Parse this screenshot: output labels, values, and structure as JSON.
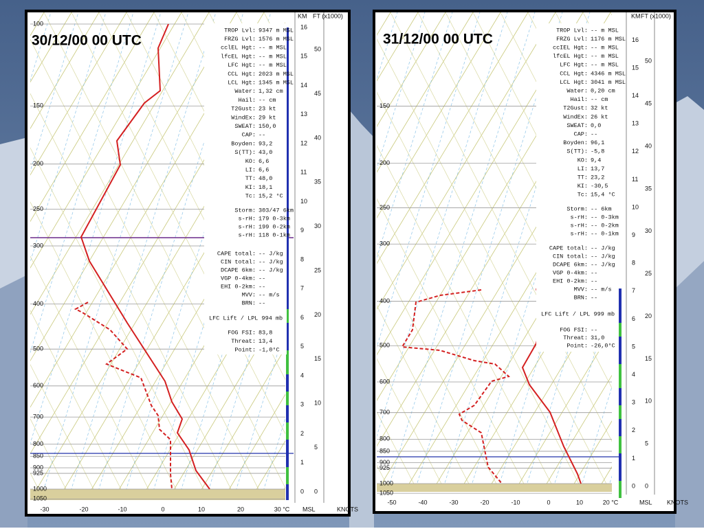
{
  "panels": [
    {
      "title": "30/12/00 00 UTC",
      "header": [
        "KM",
        "FT (x1000)"
      ],
      "footer": [
        "MSL",
        "KNOTS"
      ],
      "pressure_labels": [
        "100",
        "150",
        "200",
        "250",
        "300",
        "400",
        "500",
        "600",
        "700",
        "800",
        "850",
        "900",
        "925",
        "1000",
        "1050"
      ],
      "temp_labels": [
        "-30",
        "-20",
        "-10",
        "0",
        "10",
        "20",
        "30 °C"
      ],
      "km_labels": [
        "16",
        "15",
        "14",
        "13",
        "12",
        "11",
        "10",
        "9",
        "8",
        "7",
        "6",
        "5",
        "4",
        "3",
        "2",
        "1",
        "0"
      ],
      "ft_labels": [
        "50",
        "45",
        "40",
        "35",
        "30",
        "25",
        "20",
        "15",
        "10",
        "5",
        "0"
      ],
      "params": [
        [
          "TROP Lvl:",
          "9347 m MSL"
        ],
        [
          "FRZG Lvl:",
          "1576 m MSL"
        ],
        [
          "cclEL Hgt:",
          "-- m MSL"
        ],
        [
          "lfcEL Hgt:",
          "-- m MSL"
        ],
        [
          "LFC Hgt:",
          "-- m MSL"
        ],
        [
          "CCL Hgt:",
          "2023 m MSL"
        ],
        [
          "LCL Hgt:",
          "1345 m MSL"
        ],
        [
          "Water:",
          "1,32 cm"
        ],
        [
          "Hail:",
          "-- cm"
        ],
        [
          "T2Gust:",
          "23 kt"
        ],
        [
          "WindEx:",
          "29 kt"
        ],
        [
          "SWEAT:",
          "150,0"
        ],
        [
          "CAP:",
          "--"
        ],
        [
          "Boyden:",
          "93,2"
        ],
        [
          "S(TT):",
          "43,0"
        ],
        [
          "KO:",
          "6,6"
        ],
        [
          "LI:",
          "6,6"
        ],
        [
          "TT:",
          "48,0"
        ],
        [
          "KI:",
          "18,1"
        ],
        [
          "Tc:",
          "15,2 °C"
        ]
      ],
      "storm": [
        [
          "Storm:",
          "303/47  6km"
        ],
        [
          "s-rH:",
          "179  0-3km"
        ],
        [
          "s-rH:",
          "199  0-2km"
        ],
        [
          "s-rH:",
          "118  0-1km"
        ]
      ],
      "cape": [
        [
          "CAPE total:",
          "-- J/kg"
        ],
        [
          "CIN total:",
          "-- J/kg"
        ],
        [
          "DCAPE 6km:",
          "-- J/kg"
        ],
        [
          "VGP 0-4km:",
          "--"
        ],
        [
          "EHI 0-2km:",
          "--"
        ],
        [
          "MVV:",
          "-- m/s"
        ],
        [
          "BRN:",
          "--"
        ]
      ],
      "lift": "LFC Lift / LPL 994 mb",
      "fog": [
        [
          "FOG FSI:",
          "83,8"
        ],
        [
          "Threat:",
          "13,4"
        ],
        [
          "Point:",
          "-1,0°C"
        ]
      ]
    },
    {
      "title": "31/12/00 00 UTC",
      "header": [
        "KM",
        "FT (x1000)"
      ],
      "footer": [
        "MSL",
        "KNOTS"
      ],
      "pressure_labels": [
        "150",
        "200",
        "250",
        "300",
        "400",
        "500",
        "600",
        "700",
        "800",
        "850",
        "900",
        "925",
        "1000",
        "1050"
      ],
      "temp_labels": [
        "-50",
        "-40",
        "-30",
        "-20",
        "-10",
        "0",
        "10",
        "20 °C"
      ],
      "km_labels": [
        "16",
        "15",
        "14",
        "13",
        "12",
        "11",
        "10",
        "9",
        "8",
        "7",
        "6",
        "5",
        "4",
        "3",
        "2",
        "1",
        "0"
      ],
      "ft_labels": [
        "50",
        "45",
        "40",
        "35",
        "30",
        "25",
        "20",
        "15",
        "10",
        "5",
        "0"
      ],
      "params": [
        [
          "TROP Lvl:",
          "-- m MSL"
        ],
        [
          "FRZG Lvl:",
          "1176 m MSL"
        ],
        [
          "ccIEL Hgt:",
          "-- m MSL"
        ],
        [
          "lfcEL Hgt:",
          "-- m MSL"
        ],
        [
          "LFC Hgt:",
          "-- m MSL"
        ],
        [
          "CCL Hgt:",
          "4346 m MSL"
        ],
        [
          "LCL Hgt:",
          "3041 m MSL"
        ],
        [
          "Water:",
          "0,20 cm"
        ],
        [
          "Hail:",
          "-- cm"
        ],
        [
          "T2Gust:",
          "32 kt"
        ],
        [
          "WindEx:",
          "26 kt"
        ],
        [
          "SWEAT:",
          "0,0"
        ],
        [
          "CAP:",
          "--"
        ],
        [
          "Boyden:",
          "96,1"
        ],
        [
          "S(TT):",
          "-5,8"
        ],
        [
          "KO:",
          "9,4"
        ],
        [
          "LI:",
          "13,7"
        ],
        [
          "TT:",
          "23,2"
        ],
        [
          "KI:",
          "-30,5"
        ],
        [
          "Tc:",
          "15,4 °C"
        ]
      ],
      "storm": [
        [
          "Storm:",
          "--  6km"
        ],
        [
          "s-rH:",
          "--  0-3km"
        ],
        [
          "s-rH:",
          "--  0-2km"
        ],
        [
          "s-rH:",
          "--  0-1km"
        ]
      ],
      "cape": [
        [
          "CAPE total:",
          "-- J/kg"
        ],
        [
          "CIN total:",
          "-- J/kg"
        ],
        [
          "DCAPE 6km:",
          "-- J/kg"
        ],
        [
          "VGP 0-4km:",
          "--"
        ],
        [
          "EHI 0-2km:",
          "--"
        ],
        [
          "MVV:",
          "-- m/s"
        ],
        [
          "BRN:",
          "--"
        ]
      ],
      "lift": "LFC Lift / LPL 999 mb",
      "fog": [
        [
          "FOG FSI:",
          "--"
        ],
        [
          "Threat:",
          "31,0"
        ],
        [
          "Point:",
          "-26,0°C"
        ]
      ]
    }
  ]
}
